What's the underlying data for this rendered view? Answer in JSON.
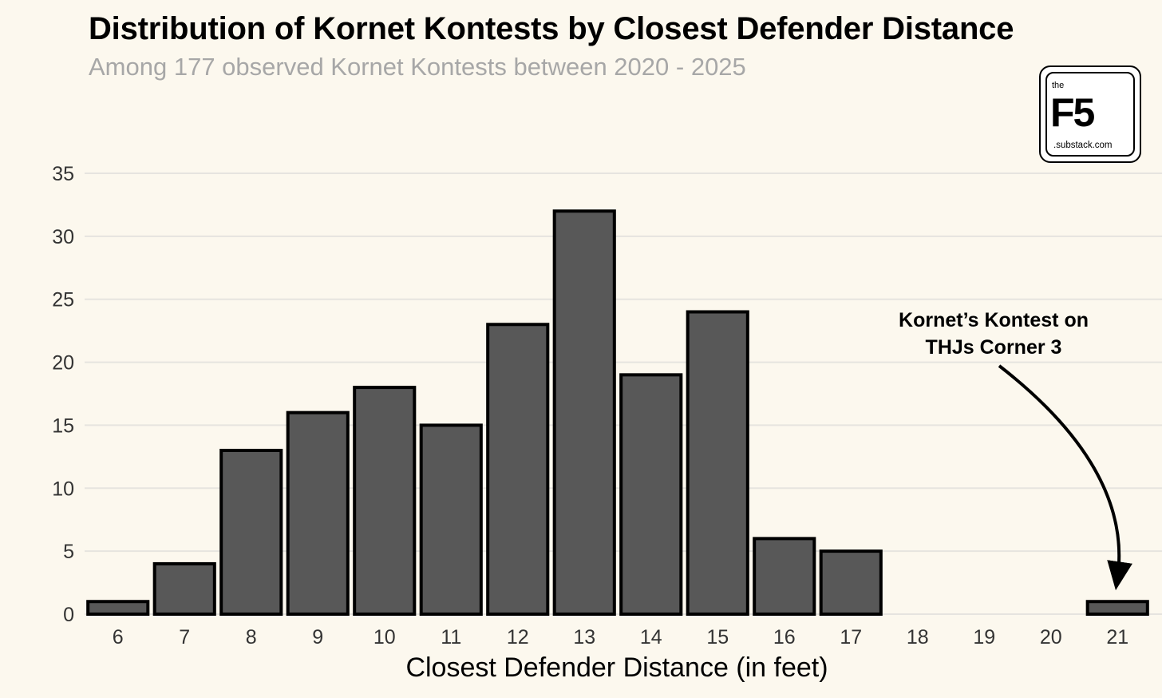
{
  "chart_data": {
    "type": "bar",
    "title": "Distribution of Kornet Kontests by Closest Defender Distance",
    "subtitle": "Among 177 observed Kornet Kontests between 2020 - 2025",
    "xlabel": "Closest Defender Distance (in feet)",
    "ylabel": "",
    "categories": [
      "6",
      "7",
      "8",
      "9",
      "10",
      "11",
      "12",
      "13",
      "14",
      "15",
      "16",
      "17",
      "18",
      "19",
      "20",
      "21"
    ],
    "values": [
      1,
      4,
      13,
      16,
      18,
      15,
      23,
      32,
      19,
      24,
      6,
      5,
      0,
      0,
      0,
      1
    ],
    "ylim": [
      0,
      35
    ],
    "yticks": [
      "0",
      "5",
      "10",
      "15",
      "20",
      "25",
      "30",
      "35"
    ],
    "grid": "horizontal",
    "bar_fill": "#585858",
    "bar_stroke": "#000000",
    "annotation": {
      "lines": [
        "Kornet’s Kontest on",
        "THJs Corner 3"
      ],
      "target_category": "21"
    }
  },
  "logo": {
    "small_text": "the",
    "big_text": "F5",
    "domain_text": ".substack.com"
  }
}
